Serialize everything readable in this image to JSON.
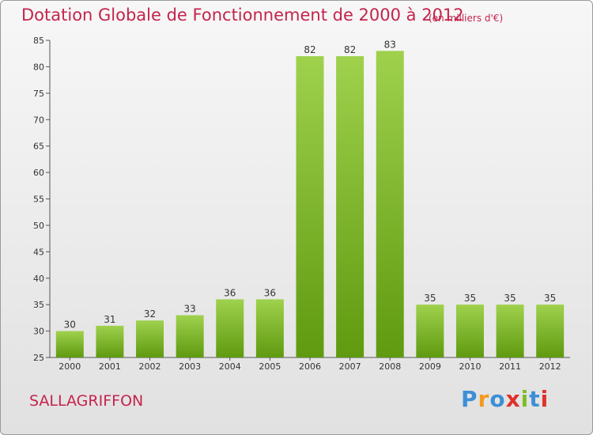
{
  "header": {
    "title": "Dotation Globale de Fonctionnement de 2000 à 2012",
    "unit": "(en milliers d'€)"
  },
  "footer": {
    "commune": "SALLAGRIFFON",
    "logo_text": "Proxiti"
  },
  "colors": {
    "title": "#c4244d",
    "bar_light": "#9fd14d",
    "bar_dark": "#5f9a10",
    "logo": [
      "#3d8fd6",
      "#f29a1f",
      "#3d8fd6",
      "#e0312b",
      "#7bbd2a",
      "#3d8fd6",
      "#e0312b"
    ]
  },
  "chart_data": {
    "type": "bar",
    "title": "Dotation Globale de Fonctionnement de 2000 à 2012",
    "unit": "(en milliers d'€)",
    "categories": [
      "2000",
      "2001",
      "2002",
      "2003",
      "2004",
      "2005",
      "2006",
      "2007",
      "2008",
      "2009",
      "2010",
      "2011",
      "2012"
    ],
    "values": [
      30,
      31,
      32,
      33,
      36,
      36,
      82,
      82,
      83,
      35,
      35,
      35,
      35
    ],
    "ylim": [
      25,
      85
    ],
    "yticks": [
      25,
      30,
      35,
      40,
      45,
      50,
      55,
      60,
      65,
      70,
      75,
      80,
      85
    ],
    "grid": false,
    "legend": "none"
  }
}
